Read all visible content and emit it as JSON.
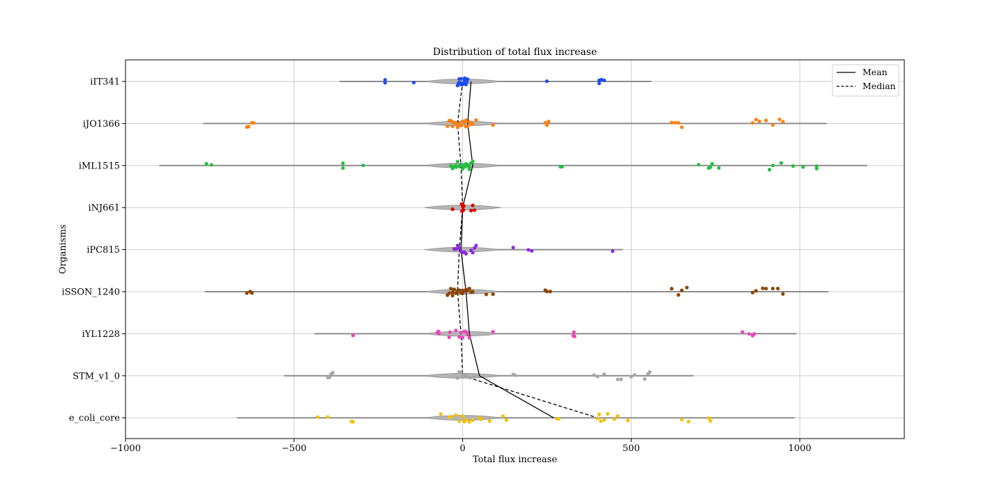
{
  "chart_data": {
    "type": "scatter",
    "title": "Distribution of total flux increase",
    "xlabel": "Total flux increase",
    "ylabel": "Organisms",
    "xlim": [
      -1000,
      1310
    ],
    "x_ticks": [
      -1000,
      -500,
      0,
      500,
      1000
    ],
    "x_tick_labels": [
      "−1000",
      "−500",
      "0",
      "500",
      "1000"
    ],
    "grid": true,
    "legend": {
      "placement": "top-right",
      "entries": [
        {
          "label": "Mean",
          "style": "solid"
        },
        {
          "label": "Median",
          "style": "dashed"
        }
      ]
    },
    "categories": [
      "iIT341",
      "iJO1366",
      "iML1515",
      "iNJ661",
      "iPC815",
      "iSSON_1240",
      "iYL1228",
      "STM_v1_0",
      "e_coli_core"
    ],
    "violin_range": [
      [
        -365,
        560
      ],
      [
        -770,
        1080
      ],
      [
        -900,
        1200
      ],
      [
        -20,
        20
      ],
      [
        -65,
        475
      ],
      [
        -765,
        1085
      ],
      [
        -440,
        990
      ],
      [
        -530,
        685
      ],
      [
        -670,
        985
      ]
    ],
    "mean": [
      25,
      15,
      30,
      0,
      -5,
      10,
      20,
      50,
      270
    ],
    "median": [
      0,
      -15,
      -5,
      0,
      -10,
      -15,
      -5,
      0,
      400
    ],
    "series": [
      {
        "category": "iIT341",
        "color": "#1f4cf0",
        "x": [
          -230,
          -230,
          -145,
          -15,
          -12,
          -8,
          -5,
          -2,
          0,
          2,
          4,
          6,
          8,
          10,
          12,
          15,
          -10,
          0,
          10,
          -6,
          6,
          250,
          405,
          405,
          412,
          420
        ]
      },
      {
        "category": "iJO1366",
        "color": "#ff7f0e",
        "x": [
          -640,
          -635,
          -625,
          -620,
          -45,
          -40,
          -35,
          -30,
          -25,
          -20,
          -15,
          -10,
          -5,
          0,
          5,
          10,
          15,
          20,
          25,
          -30,
          -10,
          10,
          30,
          40,
          90,
          245,
          250,
          255,
          620,
          630,
          640,
          650,
          860,
          870,
          880,
          900,
          920,
          940,
          950
        ]
      },
      {
        "category": "iML1515",
        "color": "#22c13f",
        "x": [
          -760,
          -745,
          -355,
          -355,
          -295,
          -35,
          -30,
          -25,
          -20,
          -15,
          -10,
          -5,
          0,
          5,
          10,
          15,
          20,
          25,
          -20,
          0,
          20,
          30,
          290,
          295,
          700,
          730,
          735,
          740,
          760,
          910,
          920,
          945,
          980,
          1010,
          1050,
          1050
        ]
      },
      {
        "category": "iNJ661",
        "color": "#e00000",
        "x": [
          -30,
          -3,
          -2,
          0,
          0,
          1,
          2,
          3,
          25,
          30,
          35
        ]
      },
      {
        "category": "iPC815",
        "color": "#8b2bdc",
        "x": [
          -25,
          -20,
          -15,
          -10,
          -5,
          0,
          5,
          10,
          25,
          30,
          35,
          40,
          150,
          195,
          205,
          445
        ]
      },
      {
        "category": "iSSON_1240",
        "color": "#8c4500",
        "x": [
          -640,
          -630,
          -625,
          -45,
          -40,
          -35,
          -30,
          -25,
          -20,
          -15,
          -10,
          -5,
          0,
          5,
          10,
          15,
          20,
          25,
          -30,
          0,
          30,
          70,
          90,
          245,
          250,
          260,
          620,
          640,
          650,
          665,
          860,
          870,
          890,
          900,
          920,
          935,
          950
        ]
      },
      {
        "category": "iYL1228",
        "color": "#ee44b9",
        "x": [
          -325,
          -325,
          -75,
          -72,
          -70,
          -40,
          -38,
          -20,
          -10,
          -5,
          0,
          5,
          10,
          15,
          20,
          90,
          328,
          330,
          332,
          830,
          850,
          860,
          865
        ]
      },
      {
        "category": "STM_v1_0",
        "color": "#a6a6a6",
        "x": [
          -400,
          -395,
          -390,
          -385,
          -15,
          -10,
          -5,
          0,
          5,
          10,
          20,
          30,
          40,
          150,
          155,
          390,
          400,
          420,
          460,
          470,
          500,
          510,
          540,
          550,
          555
        ]
      },
      {
        "category": "e_coli_core",
        "color": "#f5c000",
        "x": [
          -430,
          -400,
          -330,
          -325,
          -65,
          -40,
          -35,
          -20,
          -10,
          0,
          5,
          10,
          20,
          30,
          50,
          55,
          80,
          120,
          130,
          280,
          285,
          400,
          405,
          410,
          420,
          430,
          450,
          460,
          490,
          650,
          670,
          730,
          735
        ]
      }
    ]
  }
}
